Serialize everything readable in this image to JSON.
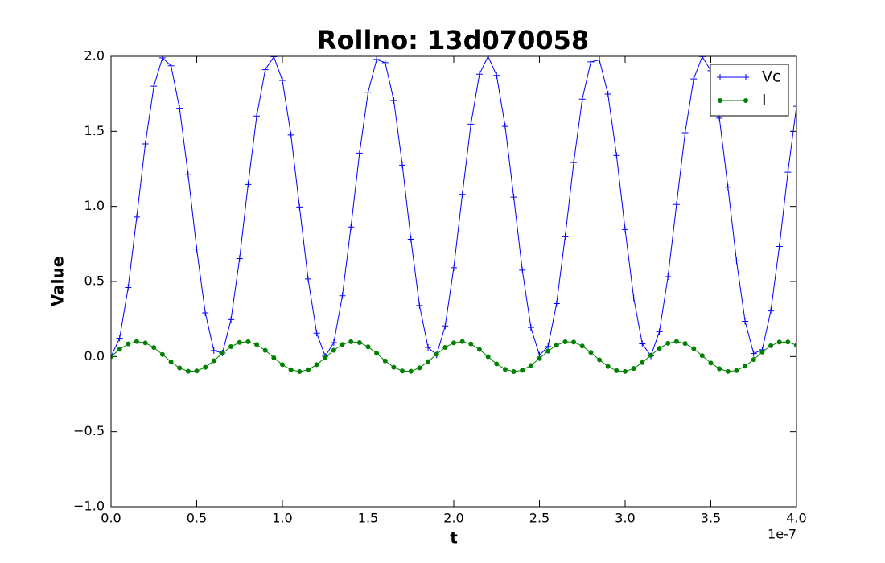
{
  "chart_data": {
    "type": "line",
    "title": "Rollno: 13d070058",
    "xlabel": "t",
    "ylabel": "Value",
    "x_offset_label": "1e-7",
    "x": [
      0,
      0.05,
      0.1,
      0.15,
      0.2,
      0.25,
      0.3,
      0.35,
      0.4,
      0.45,
      0.5,
      0.55,
      0.6,
      0.65,
      0.7,
      0.75,
      0.8,
      0.85,
      0.9,
      0.95,
      1.0,
      1.05,
      1.1,
      1.15,
      1.2,
      1.25,
      1.3,
      1.35,
      1.4,
      1.45,
      1.5,
      1.55,
      1.6,
      1.65,
      1.7,
      1.75,
      1.8,
      1.85,
      1.9,
      1.95,
      2.0,
      2.05,
      2.1,
      2.15,
      2.2,
      2.25,
      2.3,
      2.35,
      2.4,
      2.45,
      2.5,
      2.55,
      2.6,
      2.65,
      2.7,
      2.75,
      2.8,
      2.85,
      2.9,
      2.95,
      3.0,
      3.05,
      3.1,
      3.15,
      3.2,
      3.25,
      3.3,
      3.35,
      3.4,
      3.45,
      3.5,
      3.55,
      3.6,
      3.65,
      3.7,
      3.75,
      3.8,
      3.85,
      3.9,
      3.95,
      4.0
    ],
    "series": [
      {
        "name": "Vc",
        "color": "#0000ff",
        "marker": "+",
        "values": [
          0,
          0.122,
          0.46,
          0.929,
          1.416,
          1.801,
          1.99,
          1.937,
          1.654,
          1.211,
          0.716,
          0.291,
          0.04,
          0.023,
          0.246,
          0.653,
          1.146,
          1.602,
          1.911,
          1.997,
          1.839,
          1.476,
          0.996,
          0.517,
          0.156,
          0.002,
          0.093,
          0.405,
          0.863,
          1.355,
          1.76,
          1.979,
          1.958,
          1.706,
          1.275,
          0.781,
          0.34,
          0.061,
          0.011,
          0.204,
          0.592,
          1.08,
          1.548,
          1.881,
          2.0,
          1.873,
          1.533,
          1.062,
          0.576,
          0.194,
          0.009,
          0.067,
          0.353,
          0.798,
          1.292,
          1.715,
          1.963,
          1.976,
          1.748,
          1.339,
          0.846,
          0.391,
          0.085,
          0.004,
          0.166,
          0.532,
          1.013,
          1.491,
          1.849,
          1.998,
          1.904,
          1.588,
          1.128,
          0.637,
          0.235,
          0.02,
          0.045,
          0.304,
          0.733,
          1.228,
          1.667
        ]
      },
      {
        "name": "I",
        "color": "#008000",
        "marker": ".",
        "values": [
          0,
          0.048,
          0.084,
          0.1,
          0.091,
          0.06,
          0.014,
          -0.035,
          -0.076,
          -0.098,
          -0.096,
          -0.071,
          -0.028,
          0.022,
          0.066,
          0.094,
          0.099,
          0.08,
          0.041,
          -0.008,
          -0.054,
          -0.088,
          -0.1,
          -0.088,
          -0.054,
          -0.007,
          0.042,
          0.08,
          0.099,
          0.093,
          0.065,
          0.021,
          -0.029,
          -0.071,
          -0.096,
          -0.098,
          -0.075,
          -0.034,
          0.015,
          0.061,
          0.091,
          0.1,
          0.084,
          0.047,
          -0.001,
          -0.049,
          -0.085,
          -0.1,
          -0.091,
          -0.059,
          -0.013,
          0.036,
          0.076,
          0.098,
          0.096,
          0.07,
          0.027,
          -0.022,
          -0.066,
          -0.094,
          -0.099,
          -0.079,
          -0.04,
          0.008,
          0.055,
          0.088,
          0.1,
          0.087,
          0.053,
          0.006,
          -0.043,
          -0.081,
          -0.099,
          -0.093,
          -0.064,
          -0.02,
          0.03,
          0.072,
          0.096,
          0.097,
          0.075
        ]
      }
    ],
    "xlim": [
      0,
      4
    ],
    "xticks": [
      {
        "value": 0,
        "label": "0.0"
      },
      {
        "value": 0.5,
        "label": "0.5"
      },
      {
        "value": 1,
        "label": "1.0"
      },
      {
        "value": 1.5,
        "label": "1.5"
      },
      {
        "value": 2,
        "label": "2.0"
      },
      {
        "value": 2.5,
        "label": "2.5"
      },
      {
        "value": 3,
        "label": "3.0"
      },
      {
        "value": 3.5,
        "label": "3.5"
      },
      {
        "value": 4,
        "label": "4.0"
      }
    ],
    "ylim": [
      -1,
      2
    ],
    "yticks": [
      {
        "value": -1,
        "label": "−1.0"
      },
      {
        "value": -0.5,
        "label": "−0.5"
      },
      {
        "value": 0,
        "label": "0.0"
      },
      {
        "value": 0.5,
        "label": "0.5"
      },
      {
        "value": 1,
        "label": "1.0"
      },
      {
        "value": 1.5,
        "label": "1.5"
      },
      {
        "value": 2,
        "label": "2.0"
      }
    ],
    "grid": false,
    "legend": "upper right"
  }
}
